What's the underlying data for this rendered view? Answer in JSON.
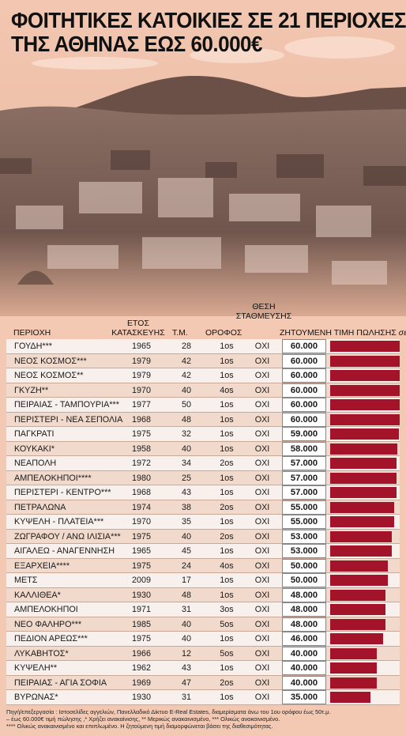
{
  "title_line1": "ΦΟΙΤΗΤΙΚΕΣ ΚΑΤΟΙΚΙΕΣ ΣΕ 21 ΠΕΡΙΟΧΕΣ",
  "title_line2": "ΤΗΣ ΑΘΗΝΑΣ ΕΩΣ 60.000€",
  "colors": {
    "background": "#f3c9b4",
    "bar": "#a3132a",
    "row_light": "#f7f0ec",
    "row_dark": "#f1d9cc"
  },
  "headers": {
    "area": "ΠΕΡΙΟΧΗ",
    "year_line1": "ΕΤΟΣ",
    "year_line2": "ΚΑΤΑΣΚΕΥΗΣ",
    "sqm": "Τ.Μ.",
    "floor": "ΟΡΟΦΟΣ",
    "parking_line1": "ΘΕΣΗ",
    "parking_line2": "ΣΤΑΘΜΕΥΣΗΣ",
    "price": "ΖΗΤΟΥΜΕΝΗ ΤΙΜΗ ΠΩΛΗΣΗΣ",
    "price_unit": "σε €"
  },
  "chart_data": {
    "type": "table",
    "rows": [
      {
        "area": "ΓΟΥΔΗ***",
        "year": "1965",
        "sqm": "28",
        "floor": "1os",
        "parking": "ΟΧΙ",
        "price_label": "60.000",
        "price": 60000
      },
      {
        "area": "ΝΕΟΣ ΚΟΣΜΟΣ***",
        "year": "1979",
        "sqm": "42",
        "floor": "1os",
        "parking": "ΟΧΙ",
        "price_label": "60.000",
        "price": 60000
      },
      {
        "area": "ΝΕΟΣ ΚΟΣΜΟΣ**",
        "year": "1979",
        "sqm": "42",
        "floor": "1os",
        "parking": "ΟΧΙ",
        "price_label": "60.000",
        "price": 60000
      },
      {
        "area": "ΓΚΥΖΗ**",
        "year": "1970",
        "sqm": "40",
        "floor": "4os",
        "parking": "ΟΧΙ",
        "price_label": "60.000",
        "price": 60000
      },
      {
        "area": "ΠΕΙΡΑΙΑΣ - ΤΑΜΠΟΥΡΙΑ***",
        "year": "1977",
        "sqm": "50",
        "floor": "1os",
        "parking": "ΟΧΙ",
        "price_label": "60.000",
        "price": 60000
      },
      {
        "area": "ΠΕΡΙΣΤΕΡΙ - ΝΕΑ ΣΕΠΟΛΙΑ",
        "year": "1968",
        "sqm": "48",
        "floor": "1os",
        "parking": "ΟΧΙ",
        "price_label": "60.000",
        "price": 60000
      },
      {
        "area": "ΠΑΓΚΡΑΤΙ",
        "year": "1975",
        "sqm": "32",
        "floor": "1os",
        "parking": "ΟΧΙ",
        "price_label": "59.000",
        "price": 59000
      },
      {
        "area": "ΚΟΥΚΑΚΙ*",
        "year": "1958",
        "sqm": "40",
        "floor": "1os",
        "parking": "ΟΧΙ",
        "price_label": "58.000",
        "price": 58000
      },
      {
        "area": "ΝΕΑΠΟΛΗ",
        "year": "1972",
        "sqm": "34",
        "floor": "2os",
        "parking": "ΟΧΙ",
        "price_label": "57.000",
        "price": 57000
      },
      {
        "area": "ΑΜΠΕΛΟΚΗΠΟΙ****",
        "year": "1980",
        "sqm": "25",
        "floor": "1os",
        "parking": "ΟΧΙ",
        "price_label": "57.000",
        "price": 57000
      },
      {
        "area": "ΠΕΡΙΣΤΕΡΙ - ΚΕΝΤΡΟ***",
        "year": "1968",
        "sqm": "43",
        "floor": "1os",
        "parking": "ΟΧΙ",
        "price_label": "57.000",
        "price": 57000
      },
      {
        "area": "ΠΕΤΡΑΛΩΝΑ",
        "year": "1974",
        "sqm": "38",
        "floor": "2os",
        "parking": "ΟΧΙ",
        "price_label": "55.000",
        "price": 55000
      },
      {
        "area": "ΚΥΨΕΛΗ - ΠΛΑΤΕΙΑ***",
        "year": "1970",
        "sqm": "35",
        "floor": "1os",
        "parking": "ΟΧΙ",
        "price_label": "55.000",
        "price": 55000
      },
      {
        "area": "ΖΩΓΡΑΦΟΥ / ΑΝΩ ΙΛΙΣΙΑ***",
        "year": "1975",
        "sqm": "40",
        "floor": "2os",
        "parking": "ΟΧΙ",
        "price_label": "53.000",
        "price": 53000
      },
      {
        "area": "ΑΙΓΑΛΕΩ - ΑΝΑΓΕΝΝΗΣΗ",
        "year": "1965",
        "sqm": "45",
        "floor": "1os",
        "parking": "ΟΧΙ",
        "price_label": "53.000",
        "price": 53000
      },
      {
        "area": "ΕΞΑΡΧΕΙΑ****",
        "year": "1975",
        "sqm": "24",
        "floor": "4os",
        "parking": "ΟΧΙ",
        "price_label": "50.000",
        "price": 50000
      },
      {
        "area": "ΜΕΤΣ",
        "year": "2009",
        "sqm": "17",
        "floor": "1os",
        "parking": "ΟΧΙ",
        "price_label": "50.000",
        "price": 50000
      },
      {
        "area": "ΚΑΛΛΙΘΕΑ*",
        "year": "1930",
        "sqm": "48",
        "floor": "1os",
        "parking": "ΟΧΙ",
        "price_label": "48.000",
        "price": 48000
      },
      {
        "area": "ΑΜΠΕΛΟΚΗΠΟΙ",
        "year": "1971",
        "sqm": "31",
        "floor": "3os",
        "parking": "ΟΧΙ",
        "price_label": "48.000",
        "price": 48000
      },
      {
        "area": "ΝΕΟ ΦΑΛΗΡΟ***",
        "year": "1985",
        "sqm": "40",
        "floor": "5os",
        "parking": "ΟΧΙ",
        "price_label": "48.000",
        "price": 48000
      },
      {
        "area": "ΠΕΔΙΟΝ ΑΡΕΩΣ***",
        "year": "1975",
        "sqm": "40",
        "floor": "1os",
        "parking": "ΟΧΙ",
        "price_label": "46.000",
        "price": 46000
      },
      {
        "area": "ΛΥΚΑΒΗΤΟΣ*",
        "year": "1966",
        "sqm": "12",
        "floor": "5os",
        "parking": "ΟΧΙ",
        "price_label": "40.000",
        "price": 40000
      },
      {
        "area": "ΚΥΨΕΛΗ**",
        "year": "1962",
        "sqm": "43",
        "floor": "1os",
        "parking": "ΟΧΙ",
        "price_label": "40.000",
        "price": 40000
      },
      {
        "area": "ΠΕΙΡΑΙΑΣ - ΑΓΙΑ ΣΟΦΙΑ",
        "year": "1969",
        "sqm": "47",
        "floor": "2os",
        "parking": "ΟΧΙ",
        "price_label": "40.000",
        "price": 40000
      },
      {
        "area": "ΒΥΡΩΝΑΣ*",
        "year": "1930",
        "sqm": "31",
        "floor": "1os",
        "parking": "ΟΧΙ",
        "price_label": "35.000",
        "price": 35000
      }
    ]
  },
  "footnote_line1": "Πηγή/επεξεργασία : Ιστοσελίδες αγγελιών, Πανελλαδικό Δίκτυο E-Real Estates, διαμερίσματα άνω του 1ου ορόφου έως 50τ.μ.",
  "footnote_line2": "– έως 60.000€ τιμή πώλησης ,* Χρήζει ανακαίνισης,  ** Μερικώς ανακαινισμένο, *** Ολικώς ανακαινισμένο.",
  "footnote_line3": "**** Ολικώς ανακαινισμένο και επιπλωμένο. Η ζητούμενη τιμή διαμορφώνεται βάσει της διαθεσιμότητας."
}
